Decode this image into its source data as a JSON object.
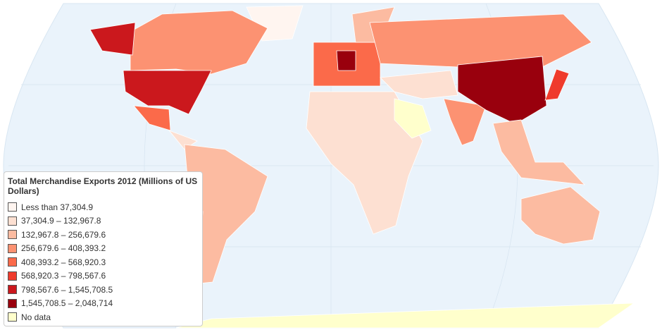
{
  "legend": {
    "title": "Total Merchandise Exports 2012 (Millions of US Dollars)",
    "items": [
      {
        "label": "Less than 37,304.9",
        "color": "#fff5f0"
      },
      {
        "label": "37,304.9 – 132,967.8",
        "color": "#fde0d2"
      },
      {
        "label": "132,967.8 – 256,679.6",
        "color": "#fcbba1"
      },
      {
        "label": "256,679.6 – 408,393.2",
        "color": "#fc9272"
      },
      {
        "label": "408,393.2 – 568,920.3",
        "color": "#fb6a4a"
      },
      {
        "label": "568,920.3 – 798,567.6",
        "color": "#ef3b2c"
      },
      {
        "label": "798,567.6 – 1,545,708.5",
        "color": "#cb181d"
      },
      {
        "label": "1,545,708.5 – 2,048,714",
        "color": "#99000d"
      },
      {
        "label": "No data",
        "color": "#ffffcc"
      }
    ]
  }
}
